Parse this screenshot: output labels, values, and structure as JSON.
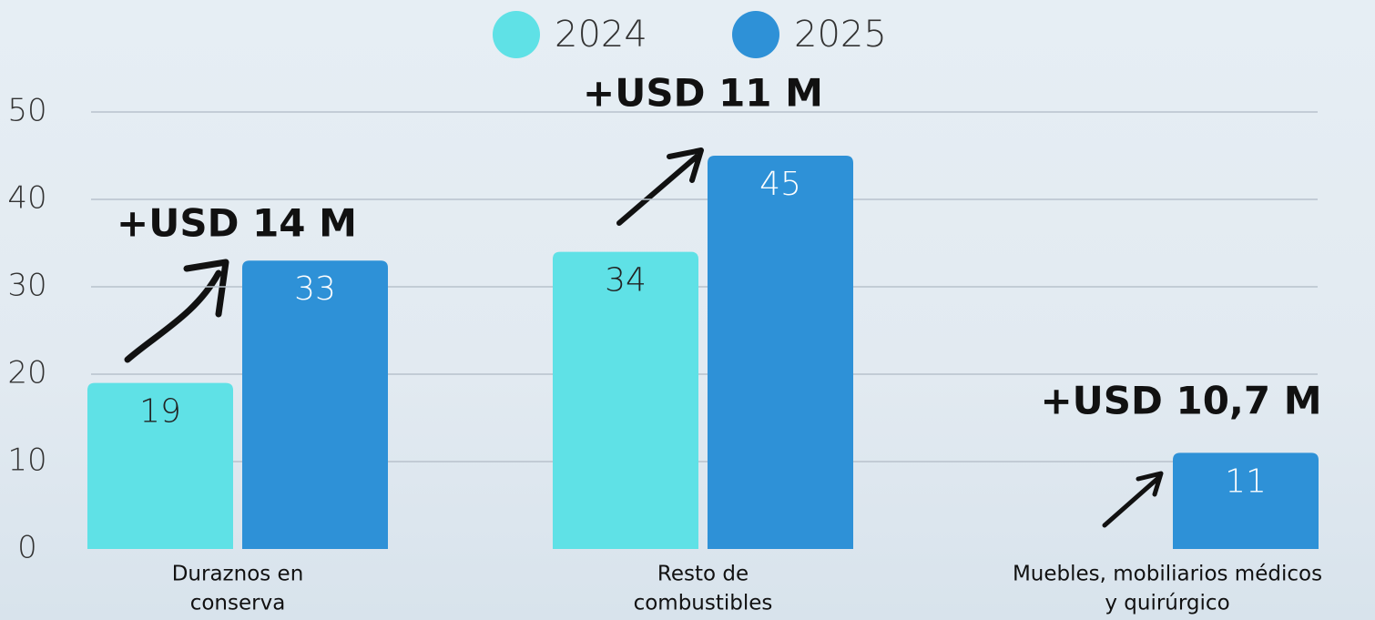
{
  "chart_data": {
    "type": "bar",
    "categories": [
      [
        "Duraznos en",
        "conserva"
      ],
      [
        "Resto de",
        "combustibles"
      ],
      [
        "Muebles, mobiliarios médicos",
        "y quirúrgico"
      ]
    ],
    "series": [
      {
        "name": "2024",
        "color": "#5fe1e6",
        "values": [
          19,
          34,
          null
        ]
      },
      {
        "name": "2025",
        "color": "#2e91d7",
        "values": [
          33,
          45,
          11
        ]
      }
    ],
    "ylim": [
      0,
      50
    ],
    "yticks": [
      0,
      10,
      20,
      30,
      40,
      50
    ],
    "grid": true,
    "annotations": [
      "+USD 14 M",
      "+USD 11 M",
      "+USD 10,7 M"
    ]
  }
}
